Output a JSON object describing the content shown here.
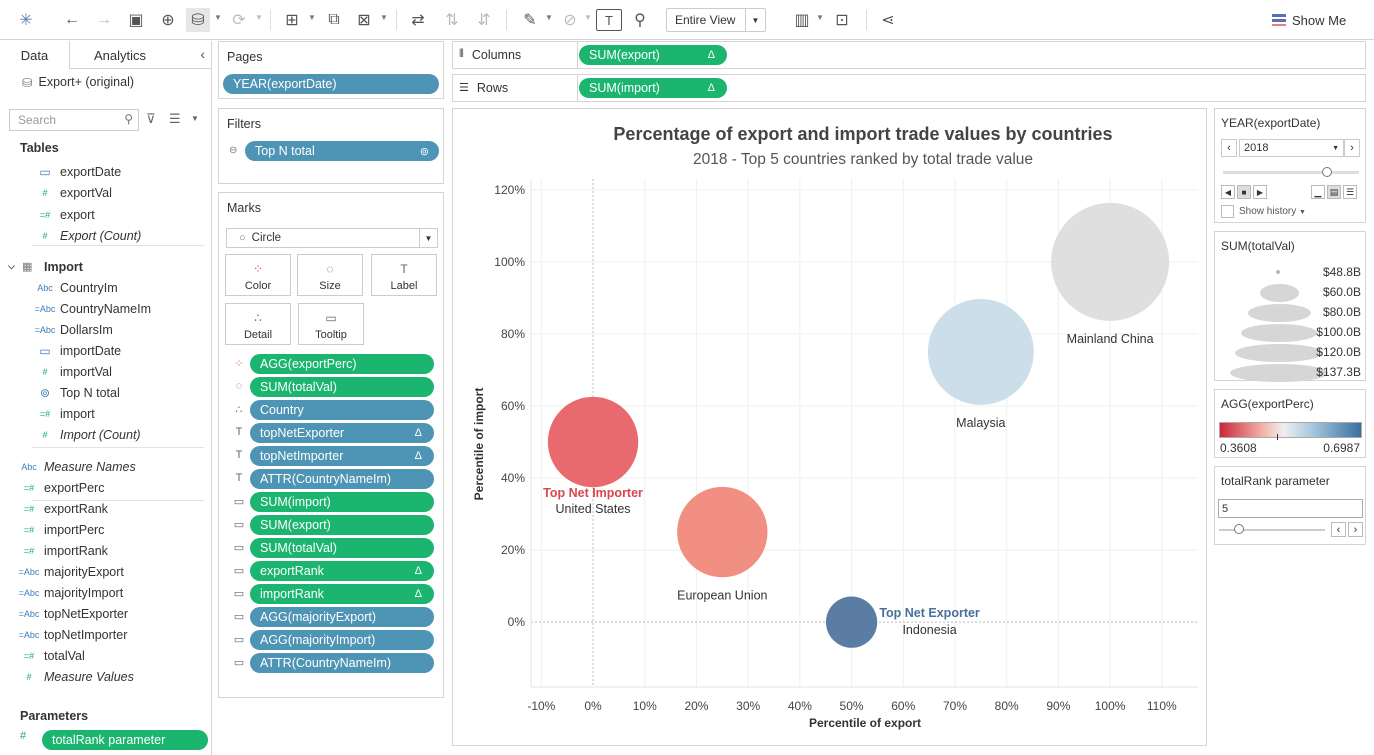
{
  "toolbar": {
    "fit_label": "Entire View",
    "show_me_label": "Show Me"
  },
  "data_pane": {
    "tab_data": "Data",
    "tab_analytics": "Analytics",
    "source": "Export+ (original)",
    "search_placeholder": "Search",
    "tables_header": "Tables",
    "export_fields": [
      {
        "name": "exportDate",
        "type": "date"
      },
      {
        "name": "exportVal",
        "type": "measure"
      },
      {
        "name": "export",
        "type": "calc"
      },
      {
        "name": "Export (Count)",
        "type": "measure-italic"
      }
    ],
    "import_table": "Import",
    "import_fields": [
      {
        "name": "CountryIm",
        "type": "Abc"
      },
      {
        "name": "CountryNameIm",
        "type": "=Abc"
      },
      {
        "name": "DollarsIm",
        "type": "=Abc"
      },
      {
        "name": "importDate",
        "type": "date"
      },
      {
        "name": "importVal",
        "type": "measure"
      },
      {
        "name": "Top N total",
        "type": "set"
      },
      {
        "name": "import",
        "type": "calc"
      },
      {
        "name": "Import (Count)",
        "type": "measure-italic"
      }
    ],
    "loose_fields": [
      {
        "name": "Measure Names",
        "type": "Abc"
      },
      {
        "name": "exportPerc",
        "type": "=#"
      },
      {
        "name": "exportRank",
        "type": "=#"
      },
      {
        "name": "importPerc",
        "type": "=#"
      },
      {
        "name": "importRank",
        "type": "=#"
      },
      {
        "name": "majorityExport",
        "type": "=Abc"
      },
      {
        "name": "majorityImport",
        "type": "=Abc"
      },
      {
        "name": "topNetExporter",
        "type": "=Abc"
      },
      {
        "name": "topNetImporter",
        "type": "=Abc"
      },
      {
        "name": "totalVal",
        "type": "=#"
      },
      {
        "name": "Measure Values",
        "type": "#"
      }
    ],
    "parameters_header": "Parameters",
    "parameter_pill": "totalRank parameter"
  },
  "pages": {
    "title": "Pages",
    "pill": "YEAR(exportDate)"
  },
  "filters": {
    "title": "Filters",
    "pill": "Top N total"
  },
  "marks": {
    "title": "Marks",
    "type": "Circle",
    "buttons": [
      "Color",
      "Size",
      "Label",
      "Detail",
      "Tooltip"
    ],
    "pills": [
      {
        "label": "AGG(exportPerc)",
        "color": "green",
        "icon": "color",
        "delta": false
      },
      {
        "label": "SUM(totalVal)",
        "color": "green",
        "icon": "size",
        "delta": false
      },
      {
        "label": "Country",
        "color": "blue",
        "icon": "detail",
        "delta": false
      },
      {
        "label": "topNetExporter",
        "color": "blue",
        "icon": "label",
        "delta": true
      },
      {
        "label": "topNetImporter",
        "color": "blue",
        "icon": "label",
        "delta": true
      },
      {
        "label": "ATTR(CountryNameIm)",
        "color": "blue",
        "icon": "label",
        "delta": false
      },
      {
        "label": "SUM(import)",
        "color": "green",
        "icon": "tooltip",
        "delta": false
      },
      {
        "label": "SUM(export)",
        "color": "green",
        "icon": "tooltip",
        "delta": false
      },
      {
        "label": "SUM(totalVal)",
        "color": "green",
        "icon": "tooltip",
        "delta": false
      },
      {
        "label": "exportRank",
        "color": "green",
        "icon": "tooltip",
        "delta": true
      },
      {
        "label": "importRank",
        "color": "green",
        "icon": "tooltip",
        "delta": true
      },
      {
        "label": "AGG(majorityExport)",
        "color": "blue",
        "icon": "tooltip",
        "delta": false
      },
      {
        "label": "AGG(majorityImport)",
        "color": "blue",
        "icon": "tooltip",
        "delta": false
      },
      {
        "label": "ATTR(CountryNameIm)",
        "color": "blue",
        "icon": "tooltip",
        "delta": false
      }
    ]
  },
  "shelves": {
    "columns_label": "Columns",
    "columns_pill": "SUM(export)",
    "rows_label": "Rows",
    "rows_pill": "SUM(import)",
    "delta": "Δ"
  },
  "chart_data": {
    "type": "scatter",
    "title": "Percentage of export and import trade values by countries",
    "subtitle": "2018 - Top  5 countries ranked by total trade value",
    "xlabel": "Percentile of export",
    "ylabel": "Percentile of import",
    "xlim": [
      -0.12,
      1.17
    ],
    "ylim": [
      -0.18,
      1.23
    ],
    "x_ticks": [
      -0.1,
      0,
      0.1,
      0.2,
      0.3,
      0.4,
      0.5,
      0.6,
      0.7,
      0.8,
      0.9,
      1.0,
      1.1
    ],
    "x_tick_labels": [
      "-10%",
      "0%",
      "10%",
      "20%",
      "30%",
      "40%",
      "50%",
      "60%",
      "70%",
      "80%",
      "90%",
      "100%",
      "110%"
    ],
    "y_ticks": [
      0,
      0.2,
      0.4,
      0.6,
      0.8,
      1.0,
      1.2
    ],
    "y_tick_labels": [
      "0%",
      "20%",
      "40%",
      "60%",
      "80%",
      "100%",
      "120%"
    ],
    "points": [
      {
        "country": "United States",
        "x": 0.0,
        "y": 0.5,
        "size_b": 115,
        "color": "#e55a5e",
        "tag": "Top Net Importer",
        "tag_color": "#d8474c"
      },
      {
        "country": "European Union",
        "x": 0.25,
        "y": 0.25,
        "size_b": 115,
        "color": "#f08474",
        "tag": "",
        "tag_color": ""
      },
      {
        "country": "Indonesia",
        "x": 0.5,
        "y": 0.0,
        "size_b": 37,
        "color": "#4a6f99",
        "tag": "Top Net Exporter",
        "tag_color": "#4a6f99"
      },
      {
        "country": "Malaysia",
        "x": 0.75,
        "y": 0.75,
        "size_b": 158,
        "color": "#c7dae7",
        "tag": "",
        "tag_color": ""
      },
      {
        "country": "Mainland China",
        "x": 1.0,
        "y": 1.0,
        "size_b": 196,
        "color": "#dcdcdc",
        "tag": "",
        "tag_color": ""
      }
    ]
  },
  "year_filter": {
    "title": "YEAR(exportDate)",
    "value": "2018",
    "show_history": "Show history"
  },
  "size_legend": {
    "title": "SUM(totalVal)",
    "labels": [
      "$48.8B",
      "$60.0B",
      "$80.0B",
      "$100.0B",
      "$120.0B",
      "$137.3B"
    ]
  },
  "color_legend": {
    "title": "AGG(exportPerc)",
    "min": "0.3608",
    "max": "0.6987",
    "low_color": "#c8283a",
    "high_color": "#3a6fa2"
  },
  "param_card": {
    "title": "totalRank parameter",
    "value": "5"
  }
}
